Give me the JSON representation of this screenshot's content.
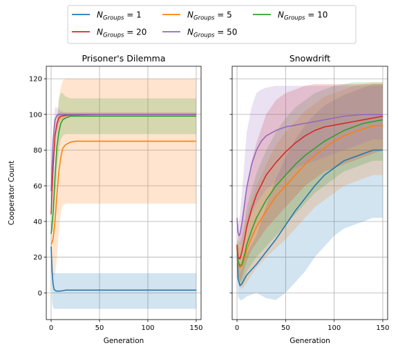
{
  "chart_data": [
    {
      "type": "line",
      "title": "Prisoner's Dilemma",
      "xlabel": "Generation",
      "ylabel": "Cooperator Count",
      "xlim": [
        -5,
        155
      ],
      "ylim": [
        -15,
        127
      ],
      "xticks": [
        0,
        50,
        100,
        150
      ],
      "yticks": [
        0,
        20,
        40,
        60,
        80,
        100,
        120
      ],
      "grid": true,
      "bands": "mean ± std shaded",
      "series": [
        {
          "name": "N_Groups = 1",
          "color": "#1f77b4",
          "x": [
            0,
            1,
            2,
            3,
            5,
            8,
            10,
            15,
            20,
            30,
            50,
            100,
            150
          ],
          "y": [
            26,
            12,
            5,
            2,
            1,
            1,
            1,
            1.5,
            1.5,
            1.5,
            1.5,
            1.5,
            1.5
          ],
          "lower": [
            26,
            -5,
            -8,
            -9,
            -9,
            -9,
            -9,
            -9,
            -9,
            -9,
            -9,
            -9,
            -9
          ],
          "upper": [
            26,
            20,
            11,
            11,
            11,
            11,
            11,
            11,
            11,
            11,
            11,
            11,
            11
          ]
        },
        {
          "name": "N_Groups = 5",
          "color": "#ff7f0e",
          "x": [
            0,
            2,
            4,
            6,
            8,
            10,
            12,
            15,
            20,
            25,
            30,
            50,
            100,
            150
          ],
          "y": [
            27,
            30,
            40,
            55,
            68,
            76,
            81,
            83,
            84.5,
            85,
            85,
            85,
            85,
            85
          ],
          "lower": [
            27,
            10,
            10,
            20,
            35,
            45,
            49,
            50,
            50,
            50,
            50,
            50,
            50,
            50
          ],
          "upper": [
            27,
            50,
            70,
            90,
            110,
            115,
            119,
            120,
            120,
            120,
            120,
            120,
            120,
            120
          ]
        },
        {
          "name": "N_Groups = 10",
          "color": "#2ca02c",
          "x": [
            0,
            2,
            4,
            6,
            8,
            10,
            12,
            15,
            20,
            30,
            50,
            100,
            150
          ],
          "y": [
            33,
            45,
            65,
            82,
            90,
            95,
            97,
            98,
            99,
            99,
            99,
            99,
            99
          ],
          "lower": [
            33,
            35,
            50,
            68,
            80,
            86,
            88,
            89,
            89,
            89,
            89,
            89,
            89
          ],
          "upper": [
            33,
            55,
            80,
            96,
            108,
            112,
            112,
            110,
            109,
            109,
            109,
            109,
            109
          ]
        },
        {
          "name": "N_Groups = 20",
          "color": "#d62728",
          "x": [
            0,
            2,
            4,
            6,
            8,
            10,
            15,
            20,
            30,
            50,
            100,
            150
          ],
          "y": [
            44,
            70,
            88,
            95,
            98,
            99,
            99.5,
            99.7,
            99.8,
            100,
            100,
            100
          ],
          "lower": [
            44,
            60,
            80,
            90,
            95,
            97,
            98,
            99,
            99,
            99,
            99,
            99
          ],
          "upper": [
            44,
            80,
            96,
            100,
            101,
            101,
            101,
            101,
            101,
            101,
            101,
            101
          ]
        },
        {
          "name": "N_Groups = 50",
          "color": "#9467bd",
          "x": [
            0,
            2,
            4,
            6,
            8,
            10,
            15,
            20,
            50,
            100,
            150
          ],
          "y": [
            57,
            85,
            97,
            99.5,
            100,
            100,
            100,
            100,
            100,
            100,
            100
          ],
          "lower": [
            57,
            80,
            93,
            98,
            99,
            99.5,
            99.5,
            99.5,
            99.5,
            99.5,
            99.5
          ],
          "upper": [
            57,
            92,
            104,
            104,
            103,
            102,
            101,
            101,
            101,
            101,
            101
          ]
        }
      ]
    },
    {
      "type": "line",
      "title": "Snowdrift",
      "xlabel": "Generation",
      "ylabel": "",
      "xlim": [
        -5,
        155
      ],
      "ylim": [
        -15,
        127
      ],
      "xticks": [
        0,
        50,
        100,
        150
      ],
      "yticks": [
        0,
        20,
        40,
        60,
        80,
        100,
        120
      ],
      "grid": true,
      "series": [
        {
          "name": "N_Groups = 1",
          "color": "#1f77b4",
          "x": [
            0,
            1,
            3,
            5,
            8,
            10,
            15,
            20,
            30,
            40,
            50,
            60,
            70,
            80,
            90,
            100,
            110,
            120,
            130,
            140,
            150
          ],
          "y": [
            26,
            8,
            4,
            5,
            8,
            10,
            13,
            16,
            23,
            30,
            38,
            46,
            53,
            60,
            66,
            70,
            74,
            76,
            78,
            80,
            80
          ],
          "lower": [
            26,
            -2,
            -4,
            -4,
            -3,
            -2,
            -1,
            0,
            -3,
            -4,
            0,
            6,
            12,
            20,
            26,
            32,
            36,
            38,
            40,
            42,
            42
          ],
          "upper": [
            26,
            18,
            12,
            14,
            19,
            22,
            27,
            32,
            49,
            64,
            76,
            86,
            94,
            100,
            105,
            108,
            111,
            113,
            115,
            117,
            117
          ]
        },
        {
          "name": "N_Groups = 5",
          "color": "#ff7f0e",
          "x": [
            0,
            1,
            3,
            5,
            8,
            10,
            15,
            20,
            30,
            40,
            50,
            60,
            70,
            80,
            90,
            100,
            110,
            120,
            130,
            140,
            150
          ],
          "y": [
            25,
            17,
            14,
            15,
            20,
            24,
            31,
            37,
            46,
            54,
            60,
            66,
            72,
            77,
            81,
            85,
            88,
            90,
            92,
            93.5,
            94
          ],
          "lower": [
            25,
            8,
            3,
            2,
            4,
            6,
            10,
            14,
            20,
            25,
            30,
            36,
            42,
            48,
            52,
            56,
            60,
            62,
            64,
            66,
            66
          ],
          "upper": [
            25,
            28,
            25,
            28,
            36,
            42,
            52,
            60,
            72,
            83,
            90,
            96,
            102,
            106,
            110,
            112,
            114,
            116,
            117,
            118,
            118
          ]
        },
        {
          "name": "N_Groups = 10",
          "color": "#2ca02c",
          "x": [
            0,
            1,
            3,
            5,
            8,
            10,
            15,
            20,
            30,
            40,
            50,
            60,
            70,
            80,
            90,
            100,
            110,
            120,
            130,
            140,
            150
          ],
          "y": [
            27,
            18,
            15,
            16,
            22,
            27,
            35,
            42,
            52,
            60,
            66,
            72,
            77,
            81,
            85,
            88,
            91,
            93,
            95,
            96,
            97
          ],
          "lower": [
            27,
            8,
            4,
            4,
            8,
            12,
            16,
            20,
            26,
            32,
            38,
            44,
            50,
            56,
            60,
            64,
            68,
            70,
            72,
            74,
            74
          ],
          "upper": [
            27,
            30,
            28,
            32,
            40,
            48,
            58,
            67,
            80,
            90,
            98,
            104,
            108,
            112,
            114,
            116,
            117,
            118,
            118,
            118,
            118
          ]
        },
        {
          "name": "N_Groups = 20",
          "color": "#d62728",
          "x": [
            0,
            1,
            3,
            5,
            8,
            10,
            15,
            20,
            30,
            40,
            50,
            60,
            70,
            80,
            90,
            100,
            110,
            120,
            130,
            140,
            150
          ],
          "y": [
            27,
            20,
            19,
            23,
            31,
            37,
            47,
            55,
            66,
            73,
            79,
            84,
            88,
            91,
            93,
            94,
            95,
            96,
            97,
            98,
            99
          ],
          "lower": [
            27,
            10,
            6,
            8,
            14,
            18,
            24,
            28,
            36,
            42,
            48,
            54,
            60,
            64,
            68,
            70,
            72,
            74,
            76,
            78,
            80
          ],
          "upper": [
            27,
            32,
            34,
            40,
            52,
            60,
            74,
            84,
            100,
            108,
            112,
            114,
            116,
            117,
            117,
            117,
            117,
            117,
            117,
            117,
            117
          ]
        },
        {
          "name": "N_Groups = 50",
          "color": "#9467bd",
          "x": [
            0,
            1,
            2,
            3,
            5,
            8,
            10,
            15,
            20,
            25,
            30,
            40,
            50,
            60,
            70,
            80,
            90,
            100,
            110,
            120,
            130,
            140,
            150
          ],
          "y": [
            42,
            34,
            32,
            33,
            39,
            51,
            59,
            72,
            80,
            85,
            88,
            91,
            93,
            94,
            95,
            96,
            97,
            98,
            99,
            99.5,
            100,
            100,
            100
          ],
          "lower": [
            42,
            32,
            28,
            26,
            28,
            34,
            38,
            44,
            50,
            54,
            58,
            62,
            66,
            70,
            72,
            74,
            76,
            78,
            80,
            82,
            84,
            86,
            86
          ],
          "upper": [
            42,
            38,
            40,
            44,
            56,
            76,
            90,
            104,
            112,
            114,
            115,
            116,
            116,
            116,
            116,
            116,
            116,
            116,
            116,
            116,
            116,
            116,
            116
          ]
        }
      ]
    }
  ],
  "legend": {
    "position": "top-center",
    "entries": [
      {
        "base": "N",
        "sub": "Groups",
        "value": "1",
        "color": "#1f77b4"
      },
      {
        "base": "N",
        "sub": "Groups",
        "value": "5",
        "color": "#ff7f0e"
      },
      {
        "base": "N",
        "sub": "Groups",
        "value": "10",
        "color": "#2ca02c"
      },
      {
        "base": "N",
        "sub": "Groups",
        "value": "20",
        "color": "#d62728"
      },
      {
        "base": "N",
        "sub": "Groups",
        "value": "50",
        "color": "#9467bd"
      }
    ]
  }
}
